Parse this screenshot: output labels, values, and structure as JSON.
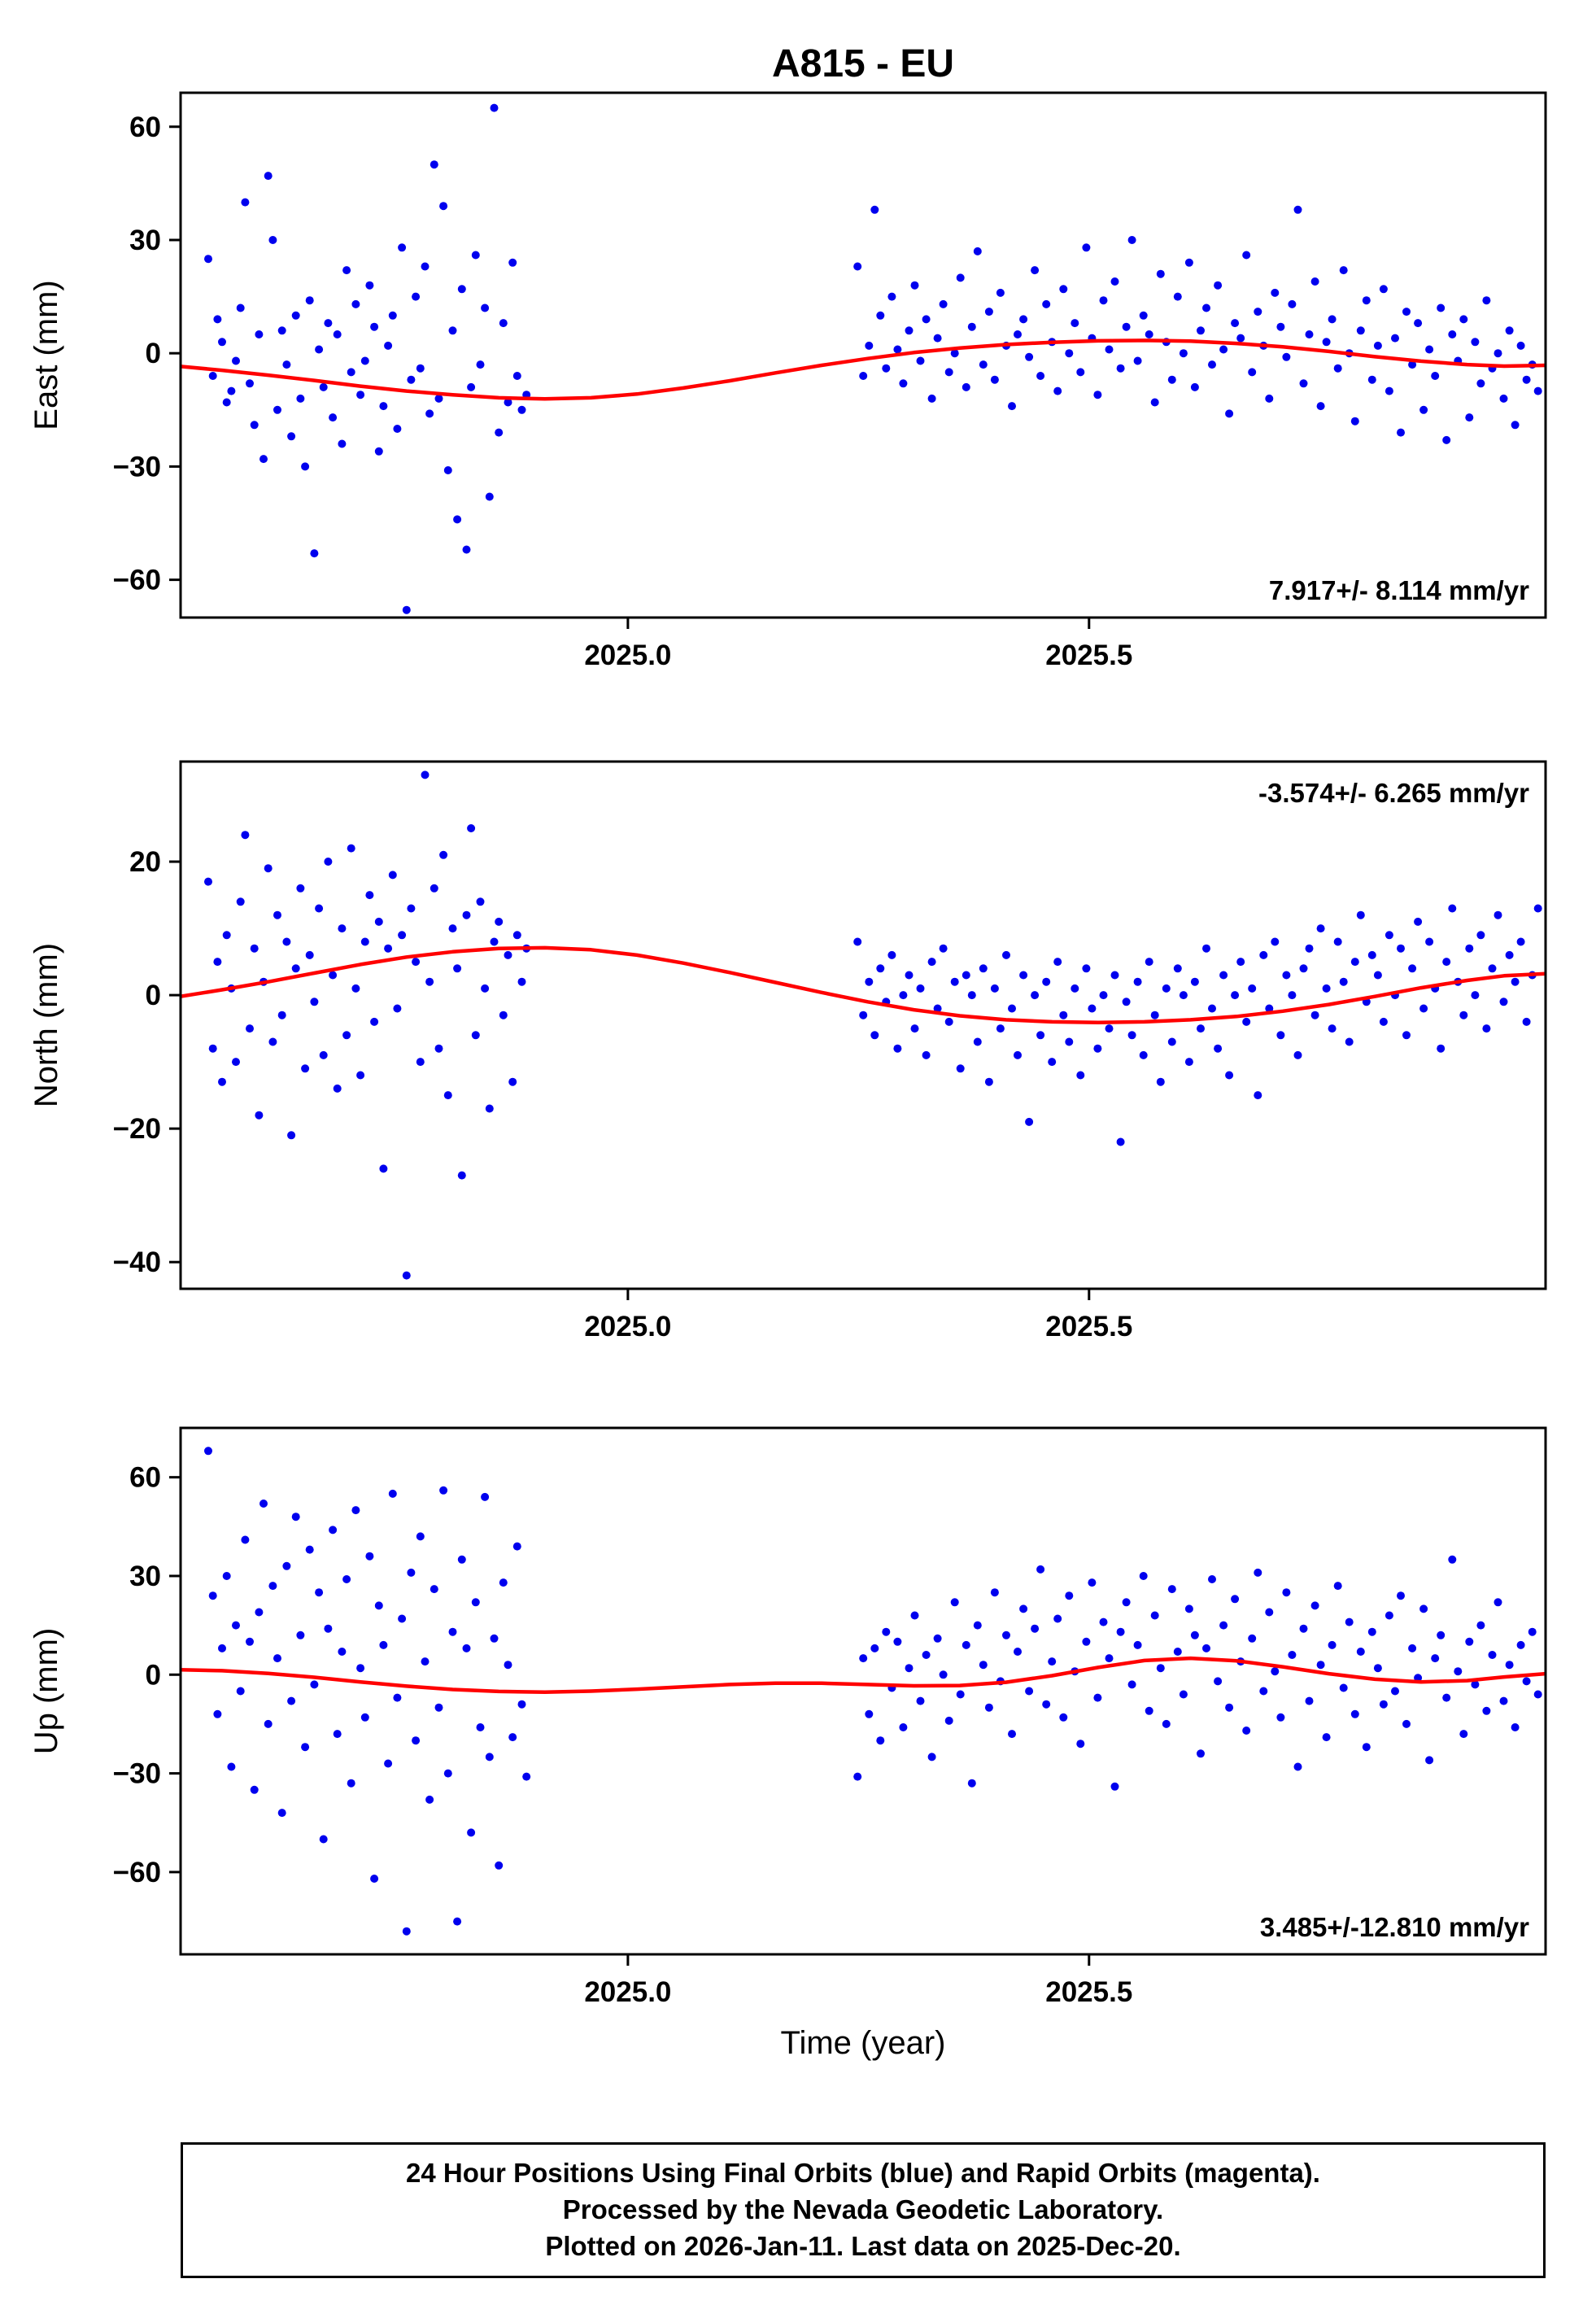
{
  "title": "A815 - EU",
  "xlabel": "Time (year)",
  "footer": {
    "line1": "24 Hour Positions Using Final Orbits (blue) and Rapid Orbits (magenta).",
    "line2": "Processed by the Nevada Geodetic Laboratory.",
    "line3": "Plotted on 2026-Jan-11. Last data on 2025-Dec-20."
  },
  "colors": {
    "points": "#0000ee",
    "curve": "#ff0000",
    "axis": "#000000",
    "text": "#000000",
    "background": "#ffffff"
  },
  "chart_data": [
    {
      "type": "scatter",
      "name": "east",
      "ylabel": "East (mm)",
      "ylim": [
        -70,
        69
      ],
      "yticks": [
        -60,
        -30,
        0,
        30,
        60
      ],
      "xlim": [
        2024.515,
        2025.995
      ],
      "xticks": [
        2025.0,
        2025.5
      ],
      "xtick_labels": [
        "2025.0",
        "2025.5"
      ],
      "annotation": {
        "text": "7.917+/- 8.114 mm/yr",
        "corner": "bottom-right"
      },
      "clusters": [
        {
          "x0": 2024.545,
          "dx": 0.005,
          "y": [
            25,
            -6,
            9,
            3,
            -13,
            -10,
            -2,
            12,
            40,
            -8,
            -19,
            5,
            -28,
            47,
            30,
            -15,
            6,
            -3,
            -22,
            10,
            -12,
            -30,
            14,
            -53,
            1,
            -9,
            8,
            -17,
            5,
            -24,
            22,
            -5,
            13,
            -11,
            -2,
            18,
            7,
            -26,
            -14,
            2,
            10,
            -20,
            28,
            -68,
            -7,
            15,
            -4,
            23,
            -16,
            50,
            -12,
            39,
            -31,
            6,
            -44,
            17,
            -52,
            -9,
            26,
            -3,
            12,
            -38,
            65,
            -21,
            8,
            -13,
            24,
            -6,
            -15,
            -11
          ]
        },
        {
          "x0": 2025.249,
          "dx": 0.0062,
          "y": [
            23,
            -6,
            2,
            38,
            10,
            -4,
            15,
            1,
            -8,
            6,
            18,
            -2,
            9,
            -12,
            4,
            13,
            -5,
            0,
            20,
            -9,
            7,
            27,
            -3,
            11,
            -7,
            16,
            2,
            -14,
            5,
            9,
            -1,
            22,
            -6,
            13,
            3,
            -10,
            17,
            0,
            8,
            -5,
            28,
            4,
            -11,
            14,
            1,
            19,
            -4,
            7,
            30,
            -2,
            10,
            5,
            -13,
            21,
            3,
            -7,
            15,
            0,
            24,
            -9,
            6,
            12,
            -3,
            18,
            1,
            -16,
            8,
            4,
            26,
            -5,
            11,
            2,
            -12,
            16,
            7,
            -1,
            13,
            38,
            -8,
            5,
            19,
            -14,
            3,
            9,
            -4,
            22,
            0,
            -18,
            6,
            14,
            -7,
            2,
            17,
            -10,
            4,
            -21,
            11,
            -3,
            8,
            -15,
            1,
            -6,
            12,
            -23,
            5,
            -2,
            9,
            -17,
            3,
            -8,
            14,
            -4,
            0,
            -12,
            6,
            -19,
            2,
            -7,
            -3,
            -10
          ]
        }
      ],
      "fit_curve": [
        [
          2024.515,
          -3.5
        ],
        [
          2024.56,
          -4.5
        ],
        [
          2024.61,
          -5.8
        ],
        [
          2024.66,
          -7.2
        ],
        [
          2024.71,
          -8.7
        ],
        [
          2024.76,
          -10.0
        ],
        [
          2024.81,
          -11.0
        ],
        [
          2024.86,
          -11.8
        ],
        [
          2024.91,
          -12.1
        ],
        [
          2024.96,
          -11.8
        ],
        [
          2025.01,
          -10.8
        ],
        [
          2025.06,
          -9.2
        ],
        [
          2025.11,
          -7.3
        ],
        [
          2025.16,
          -5.2
        ],
        [
          2025.21,
          -3.2
        ],
        [
          2025.26,
          -1.4
        ],
        [
          2025.31,
          0.2
        ],
        [
          2025.36,
          1.4
        ],
        [
          2025.41,
          2.3
        ],
        [
          2025.46,
          2.9
        ],
        [
          2025.51,
          3.3
        ],
        [
          2025.56,
          3.4
        ],
        [
          2025.61,
          3.2
        ],
        [
          2025.66,
          2.6
        ],
        [
          2025.71,
          1.7
        ],
        [
          2025.76,
          0.5
        ],
        [
          2025.81,
          -0.9
        ],
        [
          2025.86,
          -2.1
        ],
        [
          2025.91,
          -3.0
        ],
        [
          2025.95,
          -3.4
        ],
        [
          2025.995,
          -3.2
        ]
      ]
    },
    {
      "type": "scatter",
      "name": "north",
      "ylabel": "North (mm)",
      "ylim": [
        -44,
        35
      ],
      "yticks": [
        -40,
        -20,
        0,
        20
      ],
      "xlim": [
        2024.515,
        2025.995
      ],
      "xticks": [
        2025.0,
        2025.5
      ],
      "xtick_labels": [
        "2025.0",
        "2025.5"
      ],
      "annotation": {
        "text": "-3.574+/- 6.265 mm/yr",
        "corner": "top-right"
      },
      "clusters": [
        {
          "x0": 2024.545,
          "dx": 0.005,
          "y": [
            17,
            -8,
            5,
            -13,
            9,
            1,
            -10,
            14,
            24,
            -5,
            7,
            -18,
            2,
            19,
            -7,
            12,
            -3,
            8,
            -21,
            4,
            16,
            -11,
            6,
            -1,
            13,
            -9,
            20,
            3,
            -14,
            10,
            -6,
            22,
            1,
            -12,
            8,
            15,
            -4,
            11,
            -26,
            7,
            18,
            -2,
            9,
            -42,
            13,
            5,
            -10,
            33,
            2,
            16,
            -8,
            21,
            -15,
            10,
            4,
            -27,
            12,
            25,
            -6,
            14,
            1,
            -17,
            8,
            11,
            -3,
            6,
            -13,
            9,
            2,
            7
          ]
        },
        {
          "x0": 2025.249,
          "dx": 0.0062,
          "y": [
            8,
            -3,
            2,
            -6,
            4,
            -1,
            6,
            -8,
            0,
            3,
            -5,
            1,
            -9,
            5,
            -2,
            7,
            -4,
            2,
            -11,
            3,
            0,
            -7,
            4,
            -13,
            1,
            -5,
            6,
            -2,
            -9,
            3,
            -19,
            0,
            -6,
            2,
            -10,
            5,
            -3,
            -7,
            1,
            -12,
            4,
            -2,
            -8,
            0,
            -5,
            3,
            -22,
            -1,
            -6,
            2,
            -9,
            5,
            -3,
            -13,
            1,
            -7,
            4,
            0,
            -10,
            2,
            -5,
            7,
            -2,
            -8,
            3,
            -12,
            0,
            5,
            -4,
            1,
            -15,
            6,
            -2,
            8,
            -6,
            3,
            0,
            -9,
            4,
            7,
            -3,
            10,
            1,
            -5,
            8,
            2,
            -7,
            5,
            12,
            -1,
            6,
            3,
            -4,
            9,
            0,
            7,
            -6,
            4,
            11,
            -2,
            8,
            1,
            -8,
            5,
            13,
            2,
            -3,
            7,
            0,
            9,
            -5,
            4,
            12,
            -1,
            6,
            2,
            8,
            -4,
            3,
            13
          ]
        }
      ],
      "fit_curve": [
        [
          2024.515,
          -0.2
        ],
        [
          2024.56,
          0.8
        ],
        [
          2024.61,
          2.0
        ],
        [
          2024.66,
          3.3
        ],
        [
          2024.71,
          4.6
        ],
        [
          2024.76,
          5.7
        ],
        [
          2024.81,
          6.5
        ],
        [
          2024.86,
          7.0
        ],
        [
          2024.91,
          7.1
        ],
        [
          2024.96,
          6.8
        ],
        [
          2025.01,
          6.0
        ],
        [
          2025.06,
          4.8
        ],
        [
          2025.11,
          3.4
        ],
        [
          2025.16,
          1.9
        ],
        [
          2025.21,
          0.4
        ],
        [
          2025.26,
          -1.0
        ],
        [
          2025.31,
          -2.2
        ],
        [
          2025.36,
          -3.1
        ],
        [
          2025.41,
          -3.7
        ],
        [
          2025.46,
          -4.0
        ],
        [
          2025.51,
          -4.1
        ],
        [
          2025.56,
          -4.0
        ],
        [
          2025.61,
          -3.7
        ],
        [
          2025.66,
          -3.2
        ],
        [
          2025.71,
          -2.4
        ],
        [
          2025.76,
          -1.4
        ],
        [
          2025.81,
          -0.2
        ],
        [
          2025.86,
          1.1
        ],
        [
          2025.91,
          2.2
        ],
        [
          2025.95,
          2.9
        ],
        [
          2025.995,
          3.2
        ]
      ]
    },
    {
      "type": "scatter",
      "name": "up",
      "ylabel": "Up (mm)",
      "ylim": [
        -85,
        75
      ],
      "yticks": [
        -60,
        -30,
        0,
        30,
        60
      ],
      "xlim": [
        2024.515,
        2025.995
      ],
      "xticks": [
        2025.0,
        2025.5
      ],
      "xtick_labels": [
        "2025.0",
        "2025.5"
      ],
      "annotation": {
        "text": "3.485+/-12.810 mm/yr",
        "corner": "bottom-right"
      },
      "clusters": [
        {
          "x0": 2024.545,
          "dx": 0.005,
          "y": [
            68,
            24,
            -12,
            8,
            30,
            -28,
            15,
            -5,
            41,
            10,
            -35,
            19,
            52,
            -15,
            27,
            5,
            -42,
            33,
            -8,
            48,
            12,
            -22,
            38,
            -3,
            25,
            -50,
            14,
            44,
            -18,
            7,
            29,
            -33,
            50,
            2,
            -13,
            36,
            -62,
            21,
            9,
            -27,
            55,
            -7,
            17,
            -78,
            31,
            -20,
            42,
            4,
            -38,
            26,
            -10,
            56,
            -30,
            13,
            -75,
            35,
            8,
            -48,
            22,
            -16,
            54,
            -25,
            11,
            -58,
            28,
            3,
            -19,
            39,
            -9,
            -31
          ]
        },
        {
          "x0": 2025.249,
          "dx": 0.0062,
          "y": [
            -31,
            5,
            -12,
            8,
            -20,
            13,
            -4,
            10,
            -16,
            2,
            18,
            -8,
            6,
            -25,
            11,
            0,
            -14,
            22,
            -6,
            9,
            -33,
            15,
            3,
            -10,
            25,
            -2,
            12,
            -18,
            7,
            20,
            -5,
            14,
            32,
            -9,
            4,
            17,
            -13,
            24,
            1,
            -21,
            10,
            28,
            -7,
            16,
            5,
            -34,
            13,
            22,
            -3,
            9,
            30,
            -11,
            18,
            2,
            -15,
            26,
            7,
            -6,
            20,
            12,
            -24,
            8,
            29,
            -2,
            15,
            -10,
            23,
            4,
            -17,
            11,
            31,
            -5,
            19,
            1,
            -13,
            25,
            6,
            -28,
            14,
            -8,
            21,
            3,
            -19,
            9,
            27,
            -4,
            16,
            -12,
            7,
            -22,
            13,
            2,
            -9,
            18,
            -5,
            24,
            -15,
            8,
            -1,
            20,
            -26,
            5,
            12,
            -7,
            35,
            1,
            -18,
            10,
            -3,
            15,
            -11,
            6,
            22,
            -8,
            3,
            -16,
            9,
            -2,
            13,
            -6
          ]
        }
      ],
      "fit_curve": [
        [
          2024.515,
          1.5
        ],
        [
          2024.56,
          1.2
        ],
        [
          2024.61,
          0.4
        ],
        [
          2024.66,
          -0.8
        ],
        [
          2024.71,
          -2.2
        ],
        [
          2024.76,
          -3.5
        ],
        [
          2024.81,
          -4.5
        ],
        [
          2024.86,
          -5.1
        ],
        [
          2024.91,
          -5.3
        ],
        [
          2024.96,
          -5.0
        ],
        [
          2025.01,
          -4.4
        ],
        [
          2025.06,
          -3.7
        ],
        [
          2025.11,
          -3.0
        ],
        [
          2025.16,
          -2.6
        ],
        [
          2025.21,
          -2.6
        ],
        [
          2025.26,
          -3.0
        ],
        [
          2025.31,
          -3.4
        ],
        [
          2025.36,
          -3.3
        ],
        [
          2025.41,
          -2.3
        ],
        [
          2025.46,
          -0.3
        ],
        [
          2025.51,
          2.2
        ],
        [
          2025.56,
          4.3
        ],
        [
          2025.61,
          5.0
        ],
        [
          2025.66,
          4.2
        ],
        [
          2025.71,
          2.4
        ],
        [
          2025.76,
          0.3
        ],
        [
          2025.81,
          -1.4
        ],
        [
          2025.86,
          -2.2
        ],
        [
          2025.91,
          -1.8
        ],
        [
          2025.95,
          -0.7
        ],
        [
          2025.995,
          0.3
        ]
      ]
    }
  ]
}
